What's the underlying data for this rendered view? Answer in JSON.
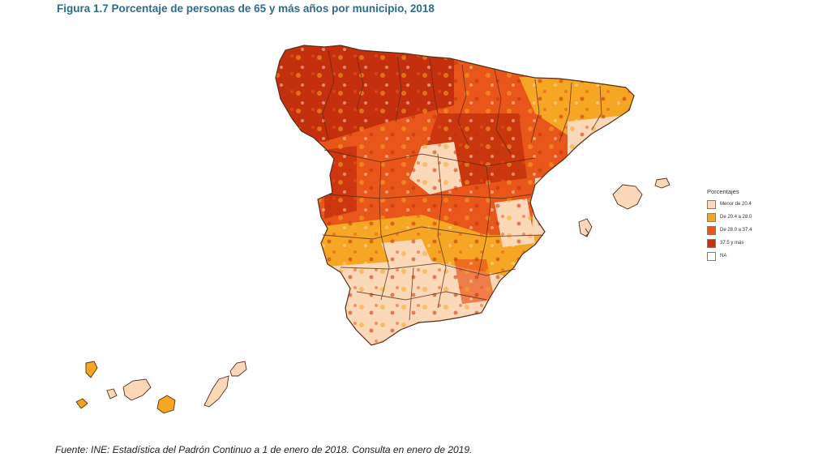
{
  "title": "Figura 1.7  Porcentaje de personas de 65 y más años por municipio, 2018",
  "legend": {
    "title": "Porcentajes",
    "items": [
      {
        "label": "Menor de 20.4",
        "color": "#fbd9b8"
      },
      {
        "label": "De 20.4 a 28.0",
        "color": "#f5a623"
      },
      {
        "label": "De 28.0 a 37.4",
        "color": "#e8561a"
      },
      {
        "label": "37.5 y más",
        "color": "#c4300d"
      },
      {
        "label": "NA",
        "color": "#ffffff"
      }
    ]
  },
  "colors": {
    "border": "#5a2a14",
    "title": "#2f6b8a"
  },
  "source": "Fuente: INE: Estadística del Padrón Continuo a 1 de enero de 2018. Consulta en enero de 2019."
}
